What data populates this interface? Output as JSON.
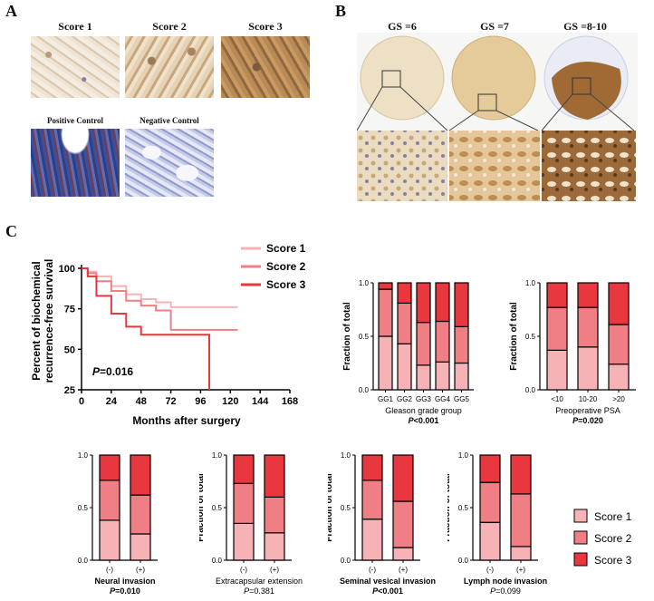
{
  "panelA": {
    "letter": "A",
    "titles": [
      "Score 1",
      "Score 2",
      "Score 3"
    ],
    "controls": [
      "Positive Control",
      "Negative Control"
    ]
  },
  "panelB": {
    "letter": "B",
    "titles": [
      "GS =6",
      "GS =7",
      "GS =8-10"
    ]
  },
  "panelC": {
    "letter": "C"
  },
  "colors": {
    "score1": "#f7b2b5",
    "score2": "#ef7f84",
    "score3": "#e8373f"
  },
  "km": {
    "ylabel_line1": "Percent of biochemical",
    "ylabel_line2": "recurrence-free survival",
    "xlabel": "Months after surgery",
    "pvalue_italic": "P",
    "pvalue_rest": "=0.016",
    "yticks": [
      "25",
      "50",
      "75",
      "100"
    ],
    "xticks": [
      "0",
      "24",
      "48",
      "72",
      "96",
      "120",
      "144",
      "168"
    ],
    "legend": [
      "Score 1",
      "Score 2",
      "Score 3"
    ]
  },
  "chart_data": [
    {
      "type": "line",
      "title": "",
      "xlabel": "Months after surgery",
      "ylabel": "Percent of biochemical recurrence-free survival",
      "xlim": [
        0,
        168
      ],
      "ylim": [
        25,
        100
      ],
      "series": [
        {
          "name": "Score 1",
          "x": [
            0,
            5,
            12,
            24,
            36,
            48,
            60,
            72,
            96,
            110,
            126
          ],
          "y": [
            100,
            98,
            95,
            89,
            84,
            81,
            79,
            76,
            76,
            76,
            76
          ]
        },
        {
          "name": "Score 2",
          "x": [
            0,
            5,
            12,
            24,
            36,
            48,
            60,
            68,
            72,
            96,
            120,
            126
          ],
          "y": [
            100,
            97,
            92,
            86,
            80,
            77,
            74,
            74,
            62,
            62,
            62,
            62
          ]
        },
        {
          "name": "Score 3",
          "x": [
            0,
            5,
            12,
            24,
            36,
            48,
            60,
            80,
            102,
            103
          ],
          "y": [
            100,
            95,
            83,
            72,
            64,
            59,
            59,
            59,
            59,
            25
          ]
        }
      ],
      "annotations": [
        "P=0.016"
      ]
    },
    {
      "type": "bar",
      "stacked": true,
      "ylabel": "Fraction of total",
      "xlabel": "Gleason grade group",
      "pvalue": "P<0.001",
      "categories": [
        "GG1",
        "GG2",
        "GG3",
        "GG4",
        "GG5"
      ],
      "yticks": [
        "0.0",
        "0.5",
        "1.0"
      ],
      "ylim": [
        0,
        1
      ],
      "series": [
        {
          "name": "Score 1",
          "values": [
            0.5,
            0.43,
            0.23,
            0.26,
            0.25
          ]
        },
        {
          "name": "Score 2",
          "values": [
            0.44,
            0.38,
            0.4,
            0.38,
            0.34
          ]
        },
        {
          "name": "Score 3",
          "values": [
            0.06,
            0.19,
            0.37,
            0.36,
            0.41
          ]
        }
      ]
    },
    {
      "type": "bar",
      "stacked": true,
      "ylabel": "Fraction of total",
      "xlabel": "Preoperative PSA",
      "pvalue": "P=0.020",
      "categories": [
        "<10",
        "10-20",
        ">20"
      ],
      "yticks": [
        "0.0",
        "0.5",
        "1.0"
      ],
      "ylim": [
        0,
        1
      ],
      "series": [
        {
          "name": "Score 1",
          "values": [
            0.37,
            0.4,
            0.24
          ]
        },
        {
          "name": "Score 2",
          "values": [
            0.4,
            0.37,
            0.37
          ]
        },
        {
          "name": "Score 3",
          "values": [
            0.23,
            0.23,
            0.39
          ]
        }
      ]
    },
    {
      "type": "bar",
      "stacked": true,
      "ylabel": "Fraction of total",
      "xlabel": "Neural invasion",
      "pvalue": "P=0.010",
      "categories": [
        "(-)",
        "(+)"
      ],
      "yticks": [
        "0.0",
        "0.5",
        "1.0"
      ],
      "ylim": [
        0,
        1
      ],
      "series": [
        {
          "name": "Score 1",
          "values": [
            0.38,
            0.25
          ]
        },
        {
          "name": "Score 2",
          "values": [
            0.38,
            0.37
          ]
        },
        {
          "name": "Score 3",
          "values": [
            0.24,
            0.38
          ]
        }
      ]
    },
    {
      "type": "bar",
      "stacked": true,
      "ylabel": "Fraction of total",
      "xlabel": "Extracapsular extension",
      "pvalue": "P=0.381",
      "categories": [
        "(-)",
        "(+)"
      ],
      "yticks": [
        "0.0",
        "0.5",
        "1.0"
      ],
      "ylim": [
        0,
        1
      ],
      "series": [
        {
          "name": "Score 1",
          "values": [
            0.35,
            0.26
          ]
        },
        {
          "name": "Score 2",
          "values": [
            0.38,
            0.34
          ]
        },
        {
          "name": "Score 3",
          "values": [
            0.27,
            0.4
          ]
        }
      ]
    },
    {
      "type": "bar",
      "stacked": true,
      "ylabel": "Fraction of total",
      "xlabel": "Seminal vesical invasion",
      "pvalue": "P<0.001",
      "categories": [
        "(-)",
        "(+)"
      ],
      "yticks": [
        "0.0",
        "0.5",
        "1.0"
      ],
      "ylim": [
        0,
        1
      ],
      "series": [
        {
          "name": "Score 1",
          "values": [
            0.39,
            0.12
          ]
        },
        {
          "name": "Score 2",
          "values": [
            0.37,
            0.44
          ]
        },
        {
          "name": "Score 3",
          "values": [
            0.24,
            0.44
          ]
        }
      ]
    },
    {
      "type": "bar",
      "stacked": true,
      "ylabel": "Fraction of total",
      "xlabel": "Lymph node invasion",
      "pvalue": "P=0.099",
      "categories": [
        "(-)",
        "(+)"
      ],
      "yticks": [
        "0.0",
        "0.5",
        "1.0"
      ],
      "ylim": [
        0,
        1
      ],
      "series": [
        {
          "name": "Score 1",
          "values": [
            0.36,
            0.13
          ]
        },
        {
          "name": "Score 2",
          "values": [
            0.38,
            0.5
          ]
        },
        {
          "name": "Score 3",
          "values": [
            0.26,
            0.37
          ]
        }
      ]
    }
  ],
  "bottom_legend": [
    "Score 1",
    "Score 2",
    "Score 3"
  ]
}
